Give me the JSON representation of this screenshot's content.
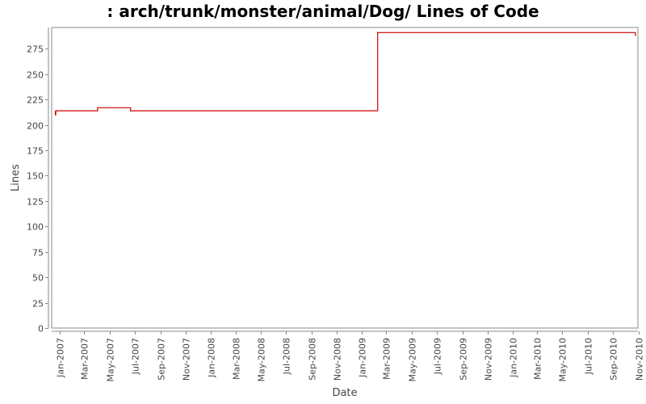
{
  "chart_data": {
    "type": "line",
    "title": ": arch/trunk/monster/animal/Dog/ Lines of Code",
    "xlabel": "Date",
    "ylabel": "Lines",
    "ylim": [
      0,
      296
    ],
    "yticks": [
      0,
      25,
      50,
      75,
      100,
      125,
      150,
      175,
      200,
      225,
      250,
      275
    ],
    "xlim": [
      "2006-12-12",
      "2010-10-31"
    ],
    "xticks": [
      {
        "date": "2007-01-01",
        "label": "Jan-2007"
      },
      {
        "date": "2007-03-01",
        "label": "Mar-2007"
      },
      {
        "date": "2007-05-01",
        "label": "May-2007"
      },
      {
        "date": "2007-07-01",
        "label": "Jul-2007"
      },
      {
        "date": "2007-09-01",
        "label": "Sep-2007"
      },
      {
        "date": "2007-11-01",
        "label": "Nov-2007"
      },
      {
        "date": "2008-01-01",
        "label": "Jan-2008"
      },
      {
        "date": "2008-03-01",
        "label": "Mar-2008"
      },
      {
        "date": "2008-05-01",
        "label": "May-2008"
      },
      {
        "date": "2008-07-01",
        "label": "Jul-2008"
      },
      {
        "date": "2008-09-01",
        "label": "Sep-2008"
      },
      {
        "date": "2008-11-01",
        "label": "Nov-2008"
      },
      {
        "date": "2009-01-01",
        "label": "Jan-2009"
      },
      {
        "date": "2009-03-01",
        "label": "Mar-2009"
      },
      {
        "date": "2009-05-01",
        "label": "May-2009"
      },
      {
        "date": "2009-07-01",
        "label": "Jul-2009"
      },
      {
        "date": "2009-09-01",
        "label": "Sep-2009"
      },
      {
        "date": "2009-11-01",
        "label": "Nov-2009"
      },
      {
        "date": "2010-01-01",
        "label": "Jan-2010"
      },
      {
        "date": "2010-03-01",
        "label": "Mar-2010"
      },
      {
        "date": "2010-05-01",
        "label": "May-2010"
      },
      {
        "date": "2010-07-01",
        "label": "Jul-2010"
      },
      {
        "date": "2010-09-01",
        "label": "Sep-2010"
      },
      {
        "date": "2010-11-01",
        "label": "Nov-2010"
      }
    ],
    "grid": false,
    "series": [
      {
        "color": "#cc0000",
        "points": [
          {
            "x": "2006-12-20",
            "y": 213
          },
          {
            "x": "2006-12-21",
            "y": 210
          },
          {
            "x": "2006-12-22",
            "y": 214
          },
          {
            "x": "2007-04-02",
            "y": 217
          },
          {
            "x": "2007-06-21",
            "y": 214
          },
          {
            "x": "2009-02-08",
            "y": 291
          },
          {
            "x": "2010-10-25",
            "y": 288
          }
        ]
      }
    ]
  }
}
